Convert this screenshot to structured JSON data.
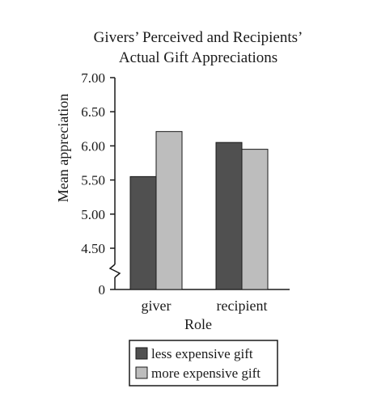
{
  "chart_data": {
    "type": "bar",
    "title_lines": [
      "Givers’ Perceived and Recipients’",
      "Actual Gift Appreciations"
    ],
    "xlabel": "Role",
    "ylabel": "Mean appreciation",
    "categories": [
      "giver",
      "recipient"
    ],
    "series": [
      {
        "name": "less expensive gift",
        "values": [
          5.55,
          6.05
        ],
        "color": "#505050"
      },
      {
        "name": "more expensive gift",
        "values": [
          6.21,
          5.95
        ],
        "color": "#bdbdbd"
      }
    ],
    "yticks": [
      "7.00",
      "6.50",
      "6.00",
      "5.50",
      "5.00",
      "4.50",
      "0"
    ],
    "ylim": [
      4.0,
      7.0
    ],
    "axis_break": true,
    "grid": false,
    "legend_position": "bottom"
  }
}
